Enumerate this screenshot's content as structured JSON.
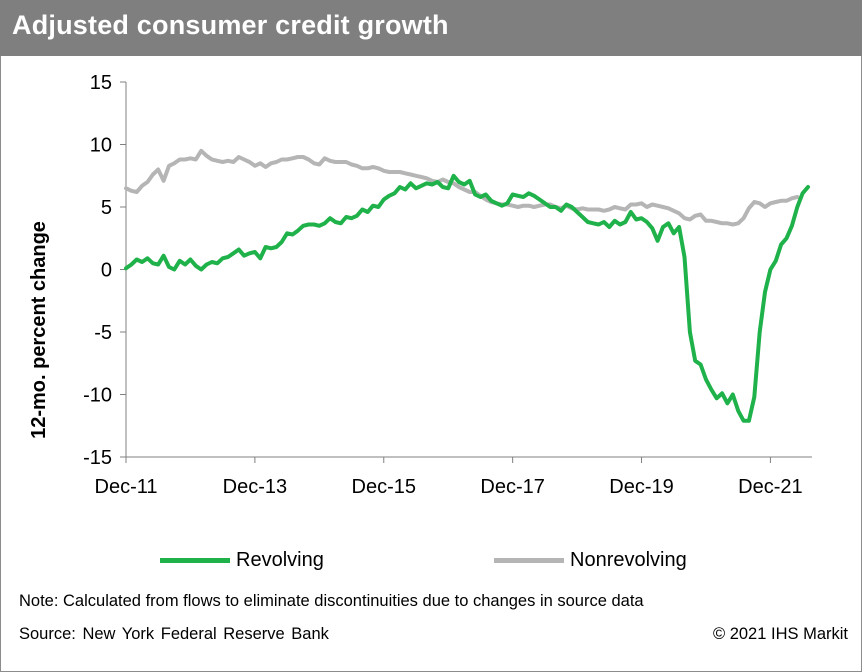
{
  "header": {
    "title": "Adjusted consumer credit growth"
  },
  "chart_data": {
    "type": "line",
    "title": "Adjusted consumer credit growth",
    "xlabel": "",
    "ylabel": "12-mo. percent change",
    "ylim": [
      -15,
      15
    ],
    "yticks": [
      "15",
      "10",
      "5",
      "0",
      "-5",
      "-10",
      "-15"
    ],
    "xticks": [
      "Dec-11",
      "Dec-13",
      "Dec-15",
      "Dec-17",
      "Dec-19",
      "Dec-21"
    ],
    "x_range_months": [
      "Dec-11",
      "Dec-21"
    ],
    "grid": false,
    "legend": "bottom",
    "series": [
      {
        "name": "Revolving",
        "color": "#1fb24a",
        "monthly_from": "Dec-11",
        "values": [
          0.1,
          0.4,
          0.8,
          0.6,
          0.9,
          0.5,
          0.4,
          1.1,
          0.2,
          0.0,
          0.7,
          0.4,
          0.8,
          0.3,
          0.0,
          0.4,
          0.6,
          0.5,
          0.9,
          1.0,
          1.3,
          1.6,
          1.1,
          1.3,
          1.4,
          0.9,
          1.8,
          1.7,
          1.8,
          2.2,
          2.9,
          2.8,
          3.1,
          3.5,
          3.6,
          3.6,
          3.5,
          3.7,
          4.1,
          3.8,
          3.7,
          4.2,
          4.1,
          4.3,
          4.8,
          4.6,
          5.1,
          5.0,
          5.6,
          5.9,
          6.1,
          6.6,
          6.4,
          6.9,
          6.5,
          6.7,
          6.9,
          6.8,
          7.0,
          6.6,
          6.5,
          7.5,
          7.0,
          6.8,
          7.1,
          6.0,
          5.8,
          6.0,
          5.5,
          5.3,
          5.1,
          5.3,
          6.0,
          5.9,
          5.8,
          6.1,
          5.9,
          5.6,
          5.3,
          5.0,
          5.0,
          4.7,
          5.2,
          5.0,
          4.6,
          4.2,
          3.8,
          3.7,
          3.6,
          3.8,
          3.4,
          3.9,
          3.6,
          3.8,
          4.6,
          4.0,
          4.1,
          3.8,
          3.3,
          2.3,
          3.4,
          3.7,
          2.9,
          3.4,
          1.0,
          -5.0,
          -7.3,
          -7.6,
          -8.8,
          -9.6,
          -10.3,
          -9.9,
          -10.7,
          -10.0,
          -11.3,
          -12.1,
          -12.1,
          -10.2,
          -5.0,
          -1.8,
          0.0,
          0.7,
          2.0,
          2.5,
          3.5,
          5.0,
          6.1,
          6.6
        ]
      },
      {
        "name": "Nonrevolving",
        "color": "#b5b5b5",
        "monthly_from": "Dec-11",
        "values": [
          6.5,
          6.3,
          6.2,
          6.7,
          7.0,
          7.6,
          8.0,
          7.1,
          8.3,
          8.5,
          8.8,
          8.8,
          8.9,
          8.8,
          9.5,
          9.1,
          8.8,
          8.7,
          8.6,
          8.7,
          8.6,
          9.0,
          8.8,
          8.6,
          8.3,
          8.5,
          8.2,
          8.5,
          8.6,
          8.8,
          8.8,
          8.9,
          9.0,
          9.0,
          8.8,
          8.5,
          8.4,
          8.9,
          8.7,
          8.6,
          8.6,
          8.6,
          8.4,
          8.3,
          8.1,
          8.1,
          8.2,
          8.1,
          7.9,
          7.8,
          7.8,
          7.8,
          7.7,
          7.6,
          7.5,
          7.4,
          7.3,
          7.1,
          7.0,
          7.2,
          7.0,
          6.9,
          6.6,
          6.4,
          6.2,
          6.2,
          5.9,
          5.6,
          5.4,
          5.3,
          5.2,
          5.2,
          5.1,
          5.0,
          5.1,
          5.1,
          5.0,
          5.1,
          5.2,
          5.2,
          5.0,
          4.9,
          5.1,
          4.9,
          4.8,
          4.9,
          4.8,
          4.8,
          4.8,
          4.7,
          4.8,
          5.0,
          4.9,
          4.8,
          5.2,
          5.2,
          5.3,
          5.0,
          5.2,
          5.1,
          5.0,
          4.9,
          4.7,
          4.5,
          4.1,
          4.0,
          4.3,
          4.4,
          3.9,
          3.9,
          3.8,
          3.7,
          3.7,
          3.6,
          3.7,
          4.1,
          4.9,
          5.4,
          5.3,
          5.0,
          5.3,
          5.4,
          5.5,
          5.5,
          5.7,
          5.8
        ]
      }
    ]
  },
  "legend": {
    "items": [
      "Revolving",
      "Nonrevolving"
    ]
  },
  "footer": {
    "note": "Note: Calculated from flows to eliminate discontinuities due to changes in source data",
    "source": "Source: New York  Federal  Reserve Bank",
    "copyright": "© 2021 IHS Markit"
  }
}
